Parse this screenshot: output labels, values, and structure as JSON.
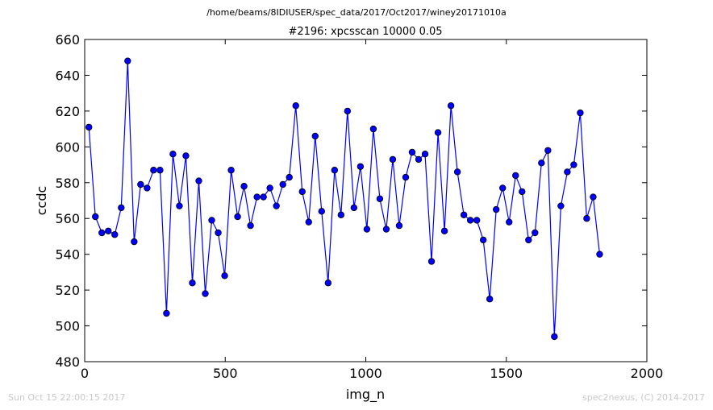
{
  "header": {
    "file_path": "/home/beams/8IDIUSER/spec_data/2017/Oct2017/winey20171010a"
  },
  "footer": {
    "timestamp": "Sun Oct 15 22:00:15 2017",
    "credit": "spec2nexus, (C) 2014-2017"
  },
  "chart_data": {
    "type": "line",
    "title": "#2196: xpcsscan 10000 0.05",
    "xlabel": "img_n",
    "ylabel": "ccdc",
    "xlim": [
      0,
      2000
    ],
    "ylim": [
      480,
      660
    ],
    "xticks": [
      0,
      500,
      1000,
      1500,
      2000
    ],
    "yticks": [
      480,
      500,
      520,
      540,
      560,
      580,
      600,
      620,
      640,
      660
    ],
    "grid": false,
    "line_color": "#0000ff",
    "marker_color": "#0000ff",
    "marker_edge_color": "#000000",
    "series": [
      {
        "x": [
          15,
          38,
          61,
          84,
          107,
          130,
          153,
          176,
          199,
          222,
          245,
          268,
          291,
          314,
          337,
          360,
          383,
          406,
          429,
          452,
          475,
          498,
          521,
          544,
          567,
          590,
          613,
          636,
          659,
          682,
          705,
          728,
          751,
          774,
          797,
          820,
          843,
          866,
          889,
          912,
          935,
          958,
          981,
          1004,
          1027,
          1050,
          1073,
          1096,
          1119,
          1142,
          1165,
          1188,
          1211,
          1234,
          1257,
          1280,
          1303,
          1326,
          1349,
          1372,
          1395,
          1418,
          1441,
          1464,
          1487,
          1510,
          1533,
          1556,
          1579,
          1602,
          1625,
          1648,
          1671,
          1694,
          1717,
          1740,
          1763,
          1786,
          1809,
          1832
        ],
        "values": [
          611,
          561,
          552,
          553,
          551,
          566,
          648,
          547,
          579,
          577,
          587,
          587,
          507,
          596,
          567,
          595,
          524,
          581,
          518,
          559,
          552,
          528,
          587,
          561,
          578,
          556,
          572,
          572,
          577,
          567,
          579,
          583,
          623,
          575,
          558,
          606,
          564,
          524,
          587,
          562,
          620,
          566,
          589,
          554,
          610,
          571,
          554,
          593,
          556,
          583,
          597,
          593,
          596,
          536,
          608,
          553,
          623,
          586,
          562,
          559,
          559,
          548,
          515,
          565,
          577,
          558,
          584,
          575,
          548,
          552,
          591,
          598,
          494,
          567,
          586,
          590,
          619,
          560,
          572,
          540
        ]
      }
    ]
  }
}
